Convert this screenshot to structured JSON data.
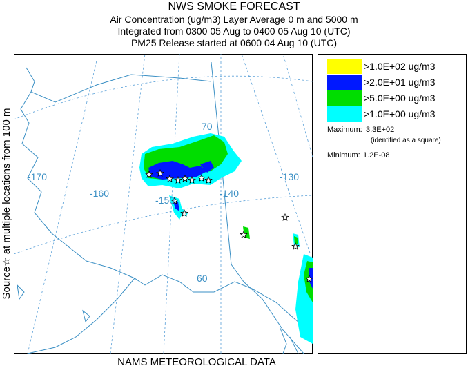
{
  "header": {
    "title": "NWS SMOKE FORECAST",
    "line2": "Air Concentration (ug/m3) Layer Average     0 m and  5000 m",
    "line3": "Integrated from 0300 05 Aug to 0400 05 Aug 10 (UTC)",
    "line4": "PM25 Release started at 0600 04 Aug 10 (UTC)"
  },
  "side_label": "Source☆ at multiple locations    from   100 m",
  "footer": "NAMS METEOROLOGICAL DATA",
  "map": {
    "lon_labels": [
      "-170",
      "-160",
      "-150",
      "-140",
      "-130"
    ],
    "lat_labels": [
      "70",
      "60"
    ],
    "colors": {
      "land": "#3a8fc4",
      "grid": "#5aa0d8",
      "border": "#3a8fc4"
    }
  },
  "legend": {
    "items": [
      {
        "label": ">1.0E+02 ug/m3",
        "color": "#ffff00"
      },
      {
        "label": ">2.0E+01 ug/m3",
        "color": "#0018ff"
      },
      {
        "label": ">5.0E+00 ug/m3",
        "color": "#00dd00"
      },
      {
        "label": ">1.0E+00 ug/m3",
        "color": "#00ffff"
      }
    ],
    "maximum_label": "Maximum:",
    "maximum_value": "3.3E+02",
    "maximum_note": "(identified as a square)",
    "minimum_label": "Minimum:",
    "minimum_value": "1.2E-08"
  }
}
